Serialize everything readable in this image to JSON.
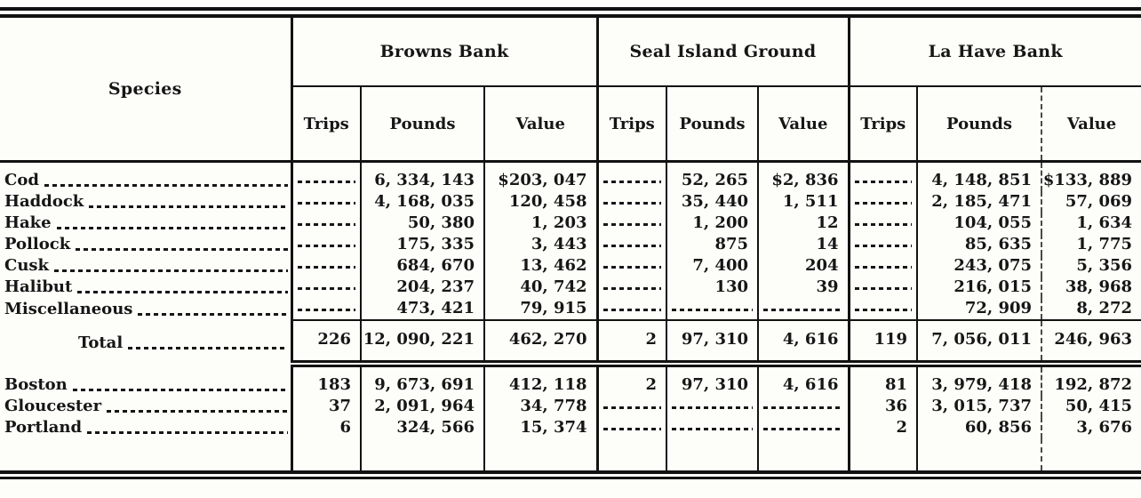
{
  "table": {
    "species_header": "Species",
    "groups": [
      {
        "label": "Browns Bank",
        "columns": [
          "Trips",
          "Pounds",
          "Value"
        ]
      },
      {
        "label": "Seal Island Ground",
        "columns": [
          "Trips",
          "Pounds",
          "Value"
        ]
      },
      {
        "label": "La Have Bank",
        "columns": [
          "Trips",
          "Pounds",
          "Value"
        ]
      }
    ],
    "species_rows": [
      {
        "name": "Cod",
        "cells": [
          null,
          "6, 334, 143",
          "$203, 047",
          null,
          "52, 265",
          "$2, 836",
          null,
          "4, 148, 851",
          "$133, 889"
        ]
      },
      {
        "name": "Haddock",
        "cells": [
          null,
          "4, 168, 035",
          "120, 458",
          null,
          "35, 440",
          "1, 511",
          null,
          "2, 185, 471",
          "57, 069"
        ]
      },
      {
        "name": "Hake",
        "cells": [
          null,
          "50, 380",
          "1, 203",
          null,
          "1, 200",
          "12",
          null,
          "104, 055",
          "1, 634"
        ]
      },
      {
        "name": "Pollock",
        "cells": [
          null,
          "175, 335",
          "3, 443",
          null,
          "875",
          "14",
          null,
          "85, 635",
          "1, 775"
        ]
      },
      {
        "name": "Cusk",
        "cells": [
          null,
          "684, 670",
          "13, 462",
          null,
          "7, 400",
          "204",
          null,
          "243, 075",
          "5, 356"
        ]
      },
      {
        "name": "Halibut",
        "cells": [
          null,
          "204, 237",
          "40, 742",
          null,
          "130",
          "39",
          null,
          "216, 015",
          "38, 968"
        ]
      },
      {
        "name": "Miscellaneous",
        "cells": [
          null,
          "473, 421",
          "79, 915",
          null,
          null,
          null,
          null,
          "72, 909",
          "8, 272"
        ]
      }
    ],
    "total_row": {
      "name": "Total",
      "cells": [
        "226",
        "12, 090, 221",
        "462, 270",
        "2",
        "97, 310",
        "4, 616",
        "119",
        "7, 056, 011",
        "246, 963"
      ]
    },
    "port_rows": [
      {
        "name": "Boston",
        "cells": [
          "183",
          "9, 673, 691",
          "412, 118",
          "2",
          "97, 310",
          "4, 616",
          "81",
          "3, 979, 418",
          "192, 872"
        ]
      },
      {
        "name": "Gloucester",
        "cells": [
          "37",
          "2, 091, 964",
          "34, 778",
          null,
          null,
          null,
          "36",
          "3, 015, 737",
          "50, 415"
        ]
      },
      {
        "name": "Portland",
        "cells": [
          "6",
          "324, 566",
          "15, 374",
          null,
          null,
          null,
          "2",
          "60, 856",
          "3, 676"
        ]
      }
    ]
  }
}
